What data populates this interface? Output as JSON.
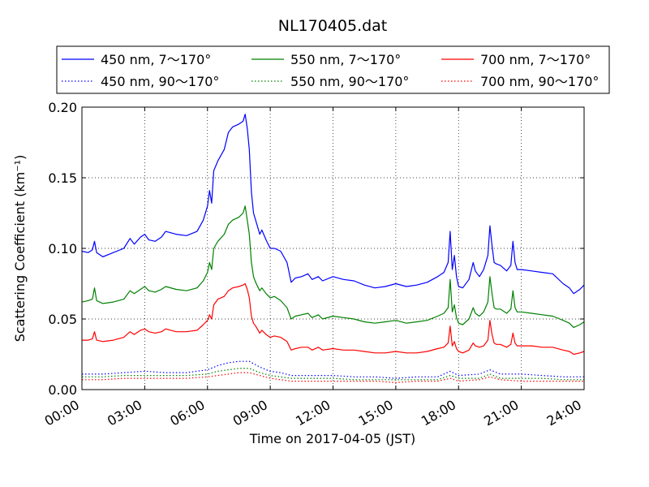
{
  "chart_data": {
    "type": "line",
    "title": "NL170405.dat",
    "xlabel": "Time on 2017-04-05 (JST)",
    "ylabel": "Scattering Coefficient (km⁻¹)",
    "xlim": [
      0,
      24
    ],
    "ylim": [
      0,
      0.2
    ],
    "x_unit": "hours",
    "grid": true,
    "legend_position": "top",
    "legend_ncol": 3,
    "xticks": [
      {
        "value": 0,
        "label": "00:00"
      },
      {
        "value": 3,
        "label": "03:00"
      },
      {
        "value": 6,
        "label": "06:00"
      },
      {
        "value": 9,
        "label": "09:00"
      },
      {
        "value": 12,
        "label": "12:00"
      },
      {
        "value": 15,
        "label": "15:00"
      },
      {
        "value": 18,
        "label": "18:00"
      },
      {
        "value": 21,
        "label": "21:00"
      },
      {
        "value": 24,
        "label": "24:00"
      }
    ],
    "yticks": [
      {
        "value": 0,
        "label": "0.00"
      },
      {
        "value": 0.05,
        "label": "0.05"
      },
      {
        "value": 0.1,
        "label": "0.10"
      },
      {
        "value": 0.15,
        "label": "0.15"
      },
      {
        "value": 0.2,
        "label": "0.20"
      }
    ],
    "series": [
      {
        "name": "450 nm, 7～170°",
        "color": "#0000ff",
        "style": "solid",
        "x": [
          0,
          0.3,
          0.5,
          0.6,
          0.7,
          1,
          1.5,
          2,
          2.3,
          2.5,
          2.8,
          3,
          3.2,
          3.5,
          3.8,
          4,
          4.5,
          5,
          5.5,
          5.8,
          6,
          6.1,
          6.2,
          6.3,
          6.5,
          6.8,
          7,
          7.2,
          7.5,
          7.7,
          7.8,
          7.9,
          8,
          8.1,
          8.2,
          8.3,
          8.5,
          8.6,
          8.8,
          9,
          9.2,
          9.5,
          9.8,
          10,
          10.2,
          10.5,
          10.8,
          11,
          11.3,
          11.5,
          12,
          12.5,
          13,
          13.5,
          14,
          14.5,
          15,
          15.5,
          16,
          16.5,
          17,
          17.3,
          17.5,
          17.6,
          17.7,
          17.8,
          17.9,
          18,
          18.2,
          18.5,
          18.7,
          18.8,
          19,
          19.2,
          19.4,
          19.5,
          19.6,
          19.7,
          19.8,
          20,
          20.3,
          20.5,
          20.6,
          20.7,
          20.8,
          21,
          21.5,
          22,
          22.5,
          23,
          23.3,
          23.5,
          23.8,
          24
        ],
        "y": [
          0.098,
          0.097,
          0.099,
          0.105,
          0.097,
          0.094,
          0.097,
          0.1,
          0.107,
          0.103,
          0.108,
          0.11,
          0.106,
          0.105,
          0.108,
          0.112,
          0.11,
          0.109,
          0.112,
          0.12,
          0.13,
          0.141,
          0.132,
          0.155,
          0.162,
          0.17,
          0.182,
          0.186,
          0.188,
          0.19,
          0.195,
          0.185,
          0.17,
          0.14,
          0.125,
          0.12,
          0.11,
          0.113,
          0.106,
          0.1,
          0.1,
          0.098,
          0.09,
          0.076,
          0.079,
          0.08,
          0.082,
          0.078,
          0.08,
          0.077,
          0.08,
          0.078,
          0.077,
          0.074,
          0.072,
          0.073,
          0.075,
          0.073,
          0.074,
          0.076,
          0.08,
          0.083,
          0.09,
          0.112,
          0.085,
          0.095,
          0.08,
          0.073,
          0.072,
          0.078,
          0.09,
          0.084,
          0.08,
          0.085,
          0.095,
          0.116,
          0.102,
          0.09,
          0.089,
          0.088,
          0.084,
          0.088,
          0.105,
          0.09,
          0.085,
          0.085,
          0.084,
          0.083,
          0.082,
          0.075,
          0.072,
          0.068,
          0.071,
          0.074
        ]
      },
      {
        "name": "550 nm, 7～170°",
        "color": "#008000",
        "style": "solid",
        "x": [
          0,
          0.3,
          0.5,
          0.6,
          0.7,
          1,
          1.5,
          2,
          2.3,
          2.5,
          2.8,
          3,
          3.2,
          3.5,
          3.8,
          4,
          4.5,
          5,
          5.5,
          5.8,
          6,
          6.1,
          6.2,
          6.3,
          6.5,
          6.8,
          7,
          7.2,
          7.5,
          7.7,
          7.8,
          7.9,
          8,
          8.1,
          8.2,
          8.3,
          8.5,
          8.6,
          8.8,
          9,
          9.2,
          9.5,
          9.8,
          10,
          10.2,
          10.5,
          10.8,
          11,
          11.3,
          11.5,
          12,
          12.5,
          13,
          13.5,
          14,
          14.5,
          15,
          15.5,
          16,
          16.5,
          17,
          17.3,
          17.5,
          17.6,
          17.7,
          17.8,
          17.9,
          18,
          18.2,
          18.5,
          18.7,
          18.8,
          19,
          19.2,
          19.4,
          19.5,
          19.6,
          19.7,
          19.8,
          20,
          20.3,
          20.5,
          20.6,
          20.7,
          20.8,
          21,
          21.5,
          22,
          22.5,
          23,
          23.3,
          23.5,
          23.8,
          24
        ],
        "y": [
          0.062,
          0.063,
          0.064,
          0.072,
          0.063,
          0.061,
          0.062,
          0.064,
          0.07,
          0.068,
          0.071,
          0.073,
          0.07,
          0.069,
          0.071,
          0.073,
          0.071,
          0.07,
          0.072,
          0.077,
          0.083,
          0.09,
          0.085,
          0.1,
          0.105,
          0.11,
          0.117,
          0.12,
          0.122,
          0.125,
          0.13,
          0.12,
          0.11,
          0.09,
          0.08,
          0.076,
          0.07,
          0.072,
          0.068,
          0.065,
          0.066,
          0.063,
          0.058,
          0.05,
          0.052,
          0.053,
          0.054,
          0.051,
          0.053,
          0.05,
          0.052,
          0.051,
          0.05,
          0.048,
          0.047,
          0.048,
          0.049,
          0.047,
          0.048,
          0.049,
          0.052,
          0.054,
          0.058,
          0.078,
          0.055,
          0.06,
          0.051,
          0.047,
          0.046,
          0.05,
          0.058,
          0.054,
          0.052,
          0.055,
          0.062,
          0.08,
          0.068,
          0.058,
          0.057,
          0.057,
          0.054,
          0.057,
          0.07,
          0.058,
          0.055,
          0.055,
          0.054,
          0.053,
          0.052,
          0.049,
          0.047,
          0.044,
          0.046,
          0.048
        ]
      },
      {
        "name": "700 nm, 7～170°",
        "color": "#ff0000",
        "style": "solid",
        "x": [
          0,
          0.3,
          0.5,
          0.6,
          0.7,
          1,
          1.5,
          2,
          2.3,
          2.5,
          2.8,
          3,
          3.2,
          3.5,
          3.8,
          4,
          4.5,
          5,
          5.5,
          5.8,
          6,
          6.1,
          6.2,
          6.3,
          6.5,
          6.8,
          7,
          7.2,
          7.5,
          7.7,
          7.8,
          7.9,
          8,
          8.1,
          8.2,
          8.3,
          8.5,
          8.6,
          8.8,
          9,
          9.2,
          9.5,
          9.8,
          10,
          10.2,
          10.5,
          10.8,
          11,
          11.3,
          11.5,
          12,
          12.5,
          13,
          13.5,
          14,
          14.5,
          15,
          15.5,
          16,
          16.5,
          17,
          17.3,
          17.5,
          17.6,
          17.7,
          17.8,
          17.9,
          18,
          18.2,
          18.5,
          18.7,
          18.8,
          19,
          19.2,
          19.4,
          19.5,
          19.6,
          19.7,
          19.8,
          20,
          20.3,
          20.5,
          20.6,
          20.7,
          20.8,
          21,
          21.5,
          22,
          22.5,
          23,
          23.3,
          23.5,
          23.8,
          24
        ],
        "y": [
          0.035,
          0.035,
          0.036,
          0.041,
          0.035,
          0.034,
          0.035,
          0.037,
          0.041,
          0.039,
          0.042,
          0.043,
          0.041,
          0.04,
          0.041,
          0.043,
          0.041,
          0.041,
          0.042,
          0.046,
          0.049,
          0.053,
          0.05,
          0.06,
          0.064,
          0.066,
          0.07,
          0.072,
          0.073,
          0.074,
          0.075,
          0.071,
          0.065,
          0.052,
          0.047,
          0.045,
          0.04,
          0.042,
          0.039,
          0.037,
          0.038,
          0.037,
          0.034,
          0.028,
          0.029,
          0.03,
          0.03,
          0.028,
          0.03,
          0.028,
          0.029,
          0.028,
          0.028,
          0.027,
          0.026,
          0.026,
          0.027,
          0.026,
          0.026,
          0.027,
          0.029,
          0.03,
          0.033,
          0.045,
          0.031,
          0.034,
          0.029,
          0.027,
          0.026,
          0.028,
          0.033,
          0.031,
          0.03,
          0.031,
          0.035,
          0.049,
          0.039,
          0.033,
          0.032,
          0.032,
          0.03,
          0.032,
          0.04,
          0.033,
          0.031,
          0.031,
          0.031,
          0.03,
          0.03,
          0.028,
          0.027,
          0.025,
          0.026,
          0.027
        ]
      },
      {
        "name": "450 nm, 90～170°",
        "color": "#0000ff",
        "style": "dotted",
        "x": [
          0,
          1,
          2,
          3,
          4,
          5,
          6,
          6.5,
          7,
          7.5,
          8,
          8.5,
          9,
          9.5,
          10,
          11,
          12,
          13,
          14,
          15,
          16,
          17,
          17.6,
          18,
          19,
          19.5,
          20,
          21,
          22,
          23,
          24
        ],
        "y": [
          0.011,
          0.011,
          0.012,
          0.013,
          0.012,
          0.012,
          0.014,
          0.017,
          0.019,
          0.02,
          0.02,
          0.016,
          0.013,
          0.012,
          0.01,
          0.01,
          0.01,
          0.009,
          0.009,
          0.008,
          0.009,
          0.009,
          0.013,
          0.01,
          0.011,
          0.014,
          0.011,
          0.011,
          0.01,
          0.009,
          0.009
        ]
      },
      {
        "name": "550 nm, 90～170°",
        "color": "#008000",
        "style": "dotted",
        "x": [
          0,
          1,
          2,
          3,
          4,
          5,
          6,
          6.5,
          7,
          7.5,
          8,
          8.5,
          9,
          9.5,
          10,
          11,
          12,
          13,
          14,
          15,
          16,
          17,
          17.6,
          18,
          19,
          19.5,
          20,
          21,
          22,
          23,
          24
        ],
        "y": [
          0.009,
          0.009,
          0.01,
          0.01,
          0.01,
          0.01,
          0.011,
          0.013,
          0.014,
          0.015,
          0.015,
          0.012,
          0.01,
          0.009,
          0.008,
          0.008,
          0.008,
          0.007,
          0.007,
          0.007,
          0.007,
          0.007,
          0.01,
          0.008,
          0.008,
          0.011,
          0.008,
          0.008,
          0.008,
          0.007,
          0.007
        ]
      },
      {
        "name": "700 nm, 90～170°",
        "color": "#ff0000",
        "style": "dotted",
        "x": [
          0,
          1,
          2,
          3,
          4,
          5,
          6,
          6.5,
          7,
          7.5,
          8,
          8.5,
          9,
          9.5,
          10,
          11,
          12,
          13,
          14,
          15,
          16,
          17,
          17.6,
          18,
          19,
          19.5,
          20,
          21,
          22,
          23,
          24
        ],
        "y": [
          0.007,
          0.007,
          0.008,
          0.008,
          0.008,
          0.008,
          0.009,
          0.01,
          0.011,
          0.012,
          0.012,
          0.01,
          0.008,
          0.007,
          0.006,
          0.006,
          0.006,
          0.006,
          0.006,
          0.005,
          0.006,
          0.006,
          0.008,
          0.006,
          0.007,
          0.009,
          0.007,
          0.006,
          0.006,
          0.006,
          0.006
        ]
      }
    ]
  }
}
